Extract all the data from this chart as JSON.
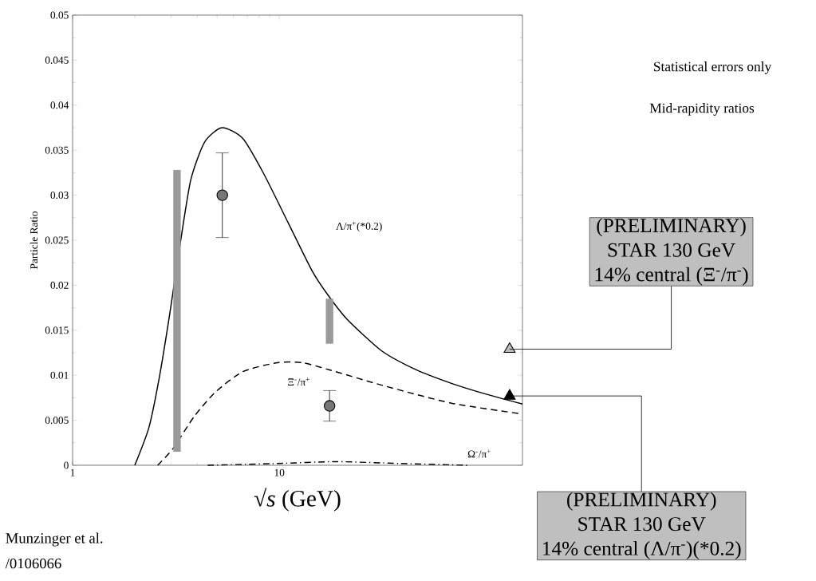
{
  "chart_data": {
    "type": "line",
    "xlabel": "√*s* (GeV)",
    "ylabel": "Particle Ratio",
    "log": "x",
    "grid": false,
    "xlim": [
      1,
      150
    ],
    "xticks": [
      1,
      10
    ],
    "ylim": [
      0,
      0.05
    ],
    "yticks": [
      0,
      0.005,
      0.01,
      0.015,
      0.02,
      0.025,
      0.03,
      0.035,
      0.04,
      0.045,
      0.05
    ],
    "series": [
      {
        "color": "#000000",
        "line_style": "solid",
        "marker": "none",
        "x": [
          2.0,
          2.34,
          2.63,
          2.96,
          3.32,
          3.73,
          4.35,
          5.28,
          6.66,
          8.4,
          11.0,
          14.4,
          17.2,
          21.3,
          31.3,
          46,
          68,
          100,
          150
        ],
        "values": [
          0,
          0.0042,
          0.0098,
          0.017,
          0.0247,
          0.0317,
          0.0359,
          0.0375,
          0.0363,
          0.0324,
          0.027,
          0.0216,
          0.0189,
          0.0162,
          0.0127,
          0.0106,
          0.0091,
          0.0079,
          0.0068
        ]
      },
      {
        "color": "#000000",
        "line_style": "dashed",
        "marker": "none",
        "x": [
          2.58,
          3.07,
          3.87,
          4.89,
          6.66,
          9.8,
          12.9,
          17.5,
          31.3,
          68,
          150
        ],
        "values": [
          0,
          0.0019,
          0.0054,
          0.0081,
          0.0104,
          0.0114,
          0.0114,
          0.0106,
          0.0089,
          0.0069,
          0.0057
        ]
      },
      {
        "color": "#000000",
        "line_style": "dashdot",
        "marker": "none",
        "x": [
          4.5,
          9.8,
          18.9,
          38,
          82
        ],
        "values": [
          0,
          0.0002,
          0.0004,
          0.0002,
          0
        ]
      },
      {
        "type": "bar",
        "color": "#9a9a9a",
        "x": [
          3.2,
          17.5
        ],
        "base": [
          0.0015,
          0.0135
        ],
        "values": [
          0.0313,
          0.005
        ]
      },
      {
        "type": "scatter",
        "color": "#777777",
        "marker": "circle",
        "x": [
          5.3,
          17.5
        ],
        "values": [
          0.03,
          0.0066
        ],
        "errors": [
          0.0047,
          0.0017
        ]
      },
      {
        "type": "scatter",
        "color": "#bbbbbb",
        "marker": "triangle",
        "x": [
          130
        ],
        "values": [
          0.0129
        ]
      },
      {
        "type": "scatter",
        "color": "#000000",
        "marker": "triangle",
        "x": [
          130
        ],
        "values": [
          0.0077
        ]
      }
    ],
    "annotations": [
      "Statistical errors only",
      "Mid-rapidity ratios",
      "Λ/π$^{+}$(*0.2)",
      "Ξ$^{-}$/π$^{+}$",
      "Ω$^{-}$/π$^{+}$",
      "(PRELIMINARY)",
      "STAR 130 GeV",
      {
        "text": "14% central (Ξ$^{-}$/π$^{-}$)",
        "x": 130,
        "y": 0.0129
      },
      {
        "text": "(PRELIMINARY)",
        "x": 130,
        "y": 0.0077
      },
      "STAR 130 GeV",
      "14% central (Λ/π$^{-}$)(*0.2)",
      "Munzinger et al.",
      "/0106066"
    ]
  }
}
